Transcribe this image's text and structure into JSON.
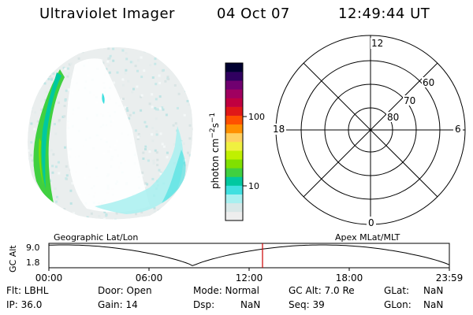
{
  "header": {
    "instrument": "Ultraviolet Imager",
    "date": "04 Oct 07",
    "time": "12:49:44 UT"
  },
  "colorbar": {
    "label": "photon cm-2s-1",
    "ticks": [
      "100",
      "10"
    ],
    "colors": [
      "#eeeeee",
      "#d8e8e8",
      "#a8f0f0",
      "#40e0e0",
      "#00c8a0",
      "#40d040",
      "#80e000",
      "#c0f000",
      "#f0f040",
      "#ffd060",
      "#ff9000",
      "#ff5000",
      "#e01818",
      "#c00040",
      "#a00060",
      "#700070",
      "#300060",
      "#000030"
    ]
  },
  "polar_grid": {
    "mlt_labels": {
      "top": "12",
      "left": "18",
      "right": "6",
      "bottom": "0"
    },
    "lat_labels": [
      "60",
      "70",
      "80"
    ]
  },
  "track": {
    "ylabel": "GC Alt",
    "ticks_y": [
      "9.0",
      "1.8"
    ],
    "left_label": "Geographic Lat/Lon",
    "right_label": "Apex MLat/MLT",
    "x_ticks": [
      "00:00",
      "06:00",
      "12:00",
      "18:00",
      "23:59"
    ],
    "marker_color": "#cc0000"
  },
  "info": {
    "flt": "Flt: LBHL",
    "ip": "IP: 36.0",
    "door": "Door: Open",
    "gain": "Gain: 14",
    "mode": "Mode: Normal",
    "dsp_label": "Dsp:",
    "dsp_value": "NaN",
    "gcalt": "GC Alt: 7.0 Re",
    "seq": "Seq: 39",
    "glat_label": "GLat:",
    "glat_value": "NaN",
    "glon_label": "GLon:",
    "glon_value": "NaN"
  }
}
